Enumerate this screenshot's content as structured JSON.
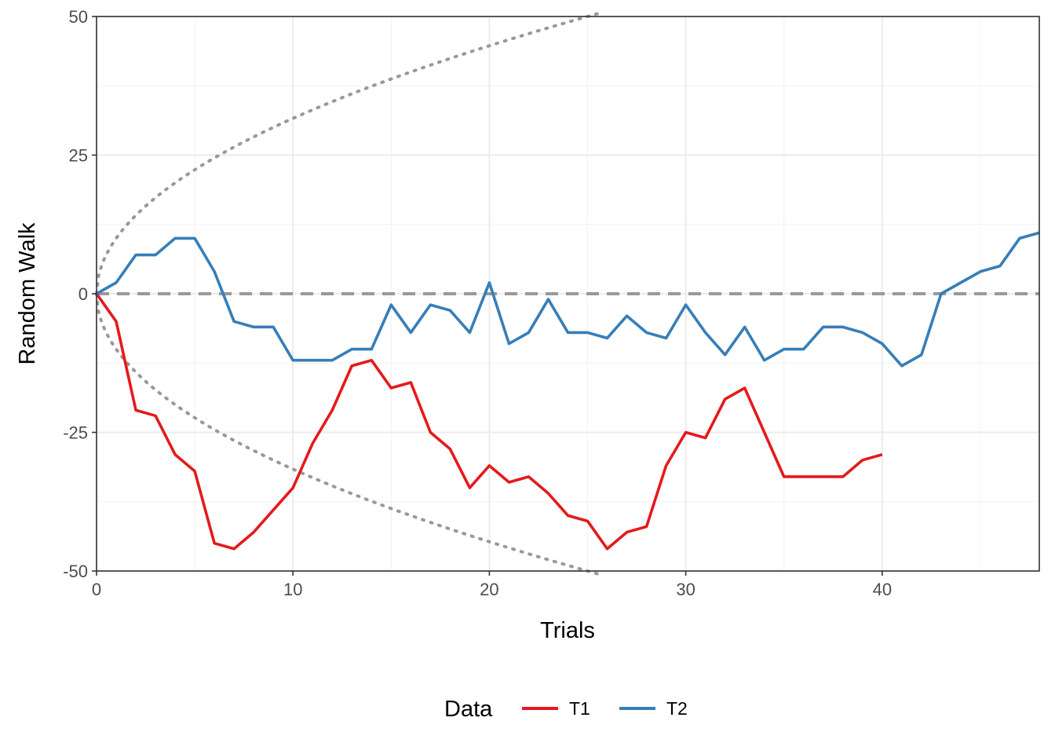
{
  "chart_data": {
    "type": "line",
    "xlabel": "Trials",
    "ylabel": "Random Walk",
    "xlim": [
      0,
      48
    ],
    "ylim": [
      -50,
      50
    ],
    "x_ticks": [
      0,
      10,
      20,
      30,
      40
    ],
    "x_tick_labels": [
      "0",
      "10",
      "20",
      "30",
      "40"
    ],
    "y_ticks": [
      -50,
      -25,
      0,
      25,
      50
    ],
    "y_tick_labels": [
      "-50",
      "-25",
      "0",
      "25",
      "50"
    ],
    "grid": true,
    "legend": {
      "title": "Data",
      "position": "bottom",
      "entries": [
        "T1",
        "T2"
      ]
    },
    "series": [
      {
        "name": "T1",
        "color": "#e41a1c",
        "x": [
          0,
          1,
          2,
          3,
          4,
          5,
          6,
          7,
          8,
          9,
          10,
          11,
          12,
          13,
          14,
          15,
          16,
          17,
          18,
          19,
          20,
          21,
          22,
          23,
          24,
          25,
          26,
          27,
          28,
          29,
          30,
          31,
          32,
          33,
          34,
          35,
          36,
          37,
          38,
          39,
          40
        ],
        "y": [
          0,
          -5,
          -21,
          -22,
          -29,
          -32,
          -45,
          -46,
          -43,
          -39,
          -35,
          -27,
          -21,
          -13,
          -12,
          -17,
          -16,
          -25,
          -28,
          -35,
          -31,
          -34,
          -33,
          -36,
          -40,
          -41,
          -46,
          -43,
          -42,
          -31,
          -25,
          -26,
          -19,
          -17,
          -25,
          -33,
          -33,
          -33,
          -33,
          -30,
          -29
        ]
      },
      {
        "name": "T2",
        "color": "#377eb8",
        "x": [
          0,
          1,
          2,
          3,
          4,
          5,
          6,
          7,
          8,
          9,
          10,
          11,
          12,
          13,
          14,
          15,
          16,
          17,
          18,
          19,
          20,
          21,
          22,
          23,
          24,
          25,
          26,
          27,
          28,
          29,
          30,
          31,
          32,
          33,
          34,
          35,
          36,
          37,
          38,
          39,
          40,
          41,
          42,
          43,
          44,
          45,
          46,
          47,
          48
        ],
        "y": [
          0,
          2,
          7,
          7,
          10,
          10,
          4,
          -5,
          -6,
          -6,
          -12,
          -12,
          -12,
          -10,
          -10,
          -2,
          -7,
          -2,
          -3,
          -7,
          2,
          -9,
          -7,
          -1,
          -7,
          -7,
          -8,
          -4,
          -7,
          -8,
          -2,
          -7,
          -11,
          -6,
          -12,
          -10,
          -10,
          -6,
          -6,
          -7,
          -9,
          -13,
          -11,
          0,
          2,
          4,
          5,
          10,
          11
        ]
      }
    ],
    "reference_lines": [
      {
        "kind": "horizontal",
        "y": 0,
        "style": "dashed",
        "color": "#999999"
      },
      {
        "kind": "boundary",
        "formula": "±10·√x",
        "style": "dotted",
        "color": "#999999"
      }
    ]
  }
}
